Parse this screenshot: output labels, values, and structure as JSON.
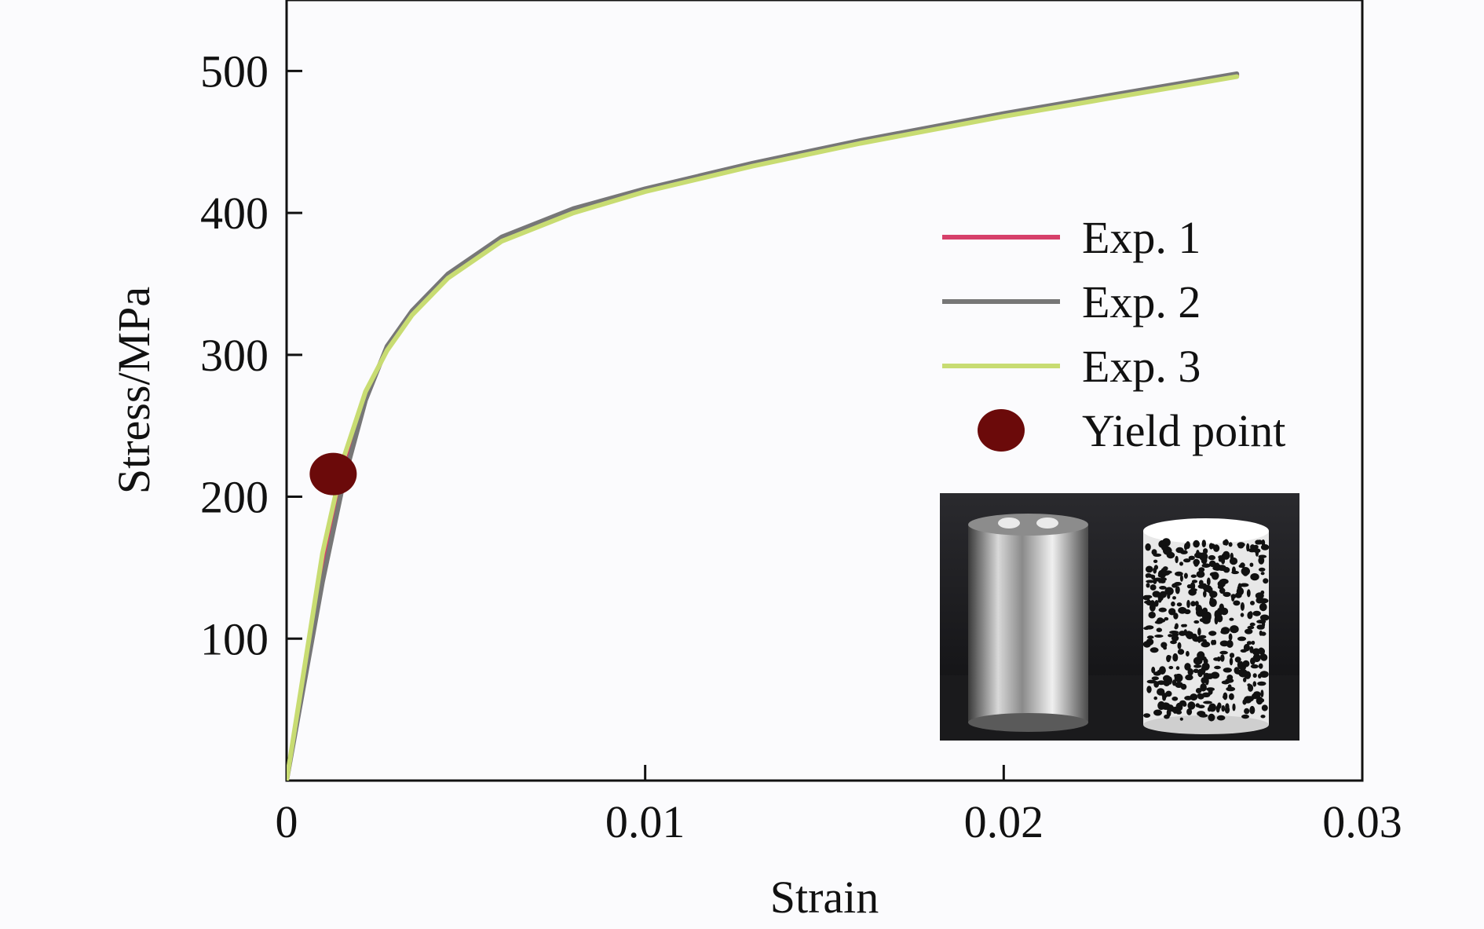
{
  "chart_data": {
    "type": "line",
    "title": "",
    "xlabel": "Strain",
    "ylabel": "Stress/MPa",
    "xlim": [
      0,
      0.03
    ],
    "ylim": [
      0,
      550
    ],
    "x_ticks": [
      0,
      0.01,
      0.02,
      0.03
    ],
    "x_tick_labels": [
      "0",
      "0.01",
      "0.02",
      "0.03"
    ],
    "y_ticks": [
      100,
      200,
      300,
      400,
      500
    ],
    "y_tick_labels": [
      "100",
      "200",
      "300",
      "400",
      "500"
    ],
    "grid": false,
    "legend_position": "right",
    "series": [
      {
        "name": "Exp. 1",
        "color": "#d6406a",
        "x": [
          0,
          0.001,
          0.0016,
          0.0022,
          0.0028,
          0.0035,
          0.0045,
          0.006,
          0.008,
          0.01,
          0.013,
          0.016,
          0.02,
          0.023,
          0.0265
        ],
        "y": [
          0,
          150,
          220,
          270,
          305,
          330,
          356,
          382,
          402,
          416,
          434,
          450,
          469,
          482,
          497
        ]
      },
      {
        "name": "Exp. 2",
        "color": "#777777",
        "x": [
          0,
          0.001,
          0.0016,
          0.0022,
          0.0028,
          0.0035,
          0.0045,
          0.006,
          0.008,
          0.01,
          0.013,
          0.016,
          0.02,
          0.023,
          0.0265
        ],
        "y": [
          0,
          140,
          212,
          268,
          306,
          331,
          357,
          383,
          403,
          417,
          435,
          451,
          470,
          483,
          498
        ]
      },
      {
        "name": "Exp. 3",
        "color": "#c8dc72",
        "x": [
          0,
          0.001,
          0.0016,
          0.0022,
          0.0028,
          0.0035,
          0.0045,
          0.006,
          0.008,
          0.01,
          0.013,
          0.016,
          0.02,
          0.023,
          0.0265
        ],
        "y": [
          0,
          160,
          228,
          274,
          303,
          328,
          354,
          380,
          400,
          415,
          433,
          449,
          468,
          481,
          496
        ]
      }
    ],
    "markers": [
      {
        "name": "Yield point",
        "color": "#6b0a0a",
        "x": 0.0013,
        "y": 216
      }
    ]
  }
}
